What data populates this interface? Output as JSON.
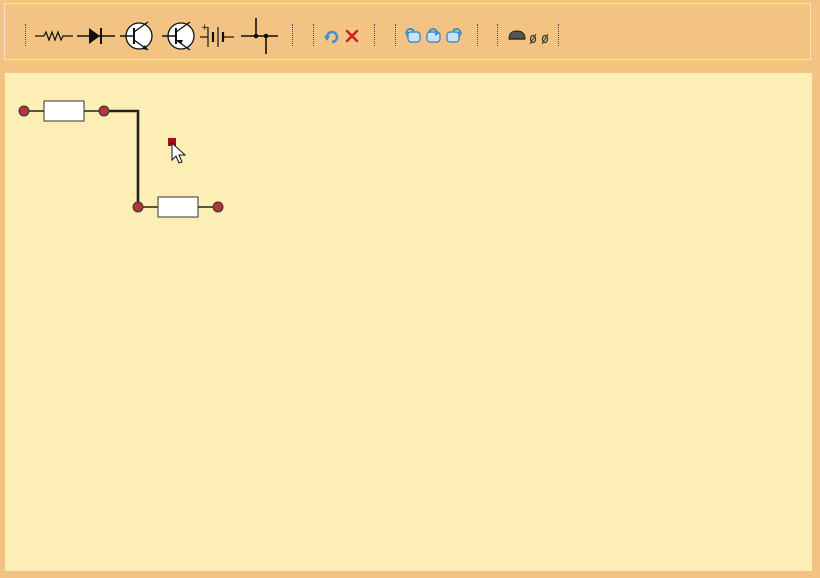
{
  "toolbar": {
    "groups": [
      {
        "name": "components",
        "tools": [
          {
            "name": "resistor",
            "icon": "resistor-icon"
          },
          {
            "name": "diode",
            "icon": "diode-icon"
          },
          {
            "name": "npn-transistor",
            "icon": "npn-transistor-icon"
          },
          {
            "name": "pnp-transistor",
            "icon": "pnp-transistor-icon"
          },
          {
            "name": "battery",
            "icon": "battery-icon"
          },
          {
            "name": "junction",
            "icon": "junction-icon"
          }
        ]
      },
      {
        "name": "edit",
        "tools": [
          {
            "name": "rotate",
            "icon": "rotate-icon"
          },
          {
            "name": "delete",
            "icon": "delete-x-icon"
          }
        ]
      },
      {
        "name": "history",
        "tools": [
          {
            "name": "undo",
            "icon": "undo-icon"
          },
          {
            "name": "undo-redo",
            "icon": "undo-redo-icon"
          },
          {
            "name": "redo",
            "icon": "redo-icon"
          }
        ]
      },
      {
        "name": "misc",
        "tools": [
          {
            "name": "probe",
            "icon": "probe-icon"
          }
        ]
      }
    ]
  },
  "colors": {
    "toolbar_bg": "#f3c383",
    "canvas_bg": "#fdeeb5",
    "wire": "#222222",
    "terminal": "#b0363b",
    "selection_handle": "#a0101a",
    "icon_blue": "#3b8fd0",
    "delete_red": "#d42020"
  },
  "canvas": {
    "components": [
      {
        "type": "resistor",
        "name": "resistor-1"
      },
      {
        "type": "resistor",
        "name": "resistor-2"
      }
    ],
    "wires": [
      {
        "from": "resistor-1",
        "to": "resistor-2"
      }
    ]
  }
}
